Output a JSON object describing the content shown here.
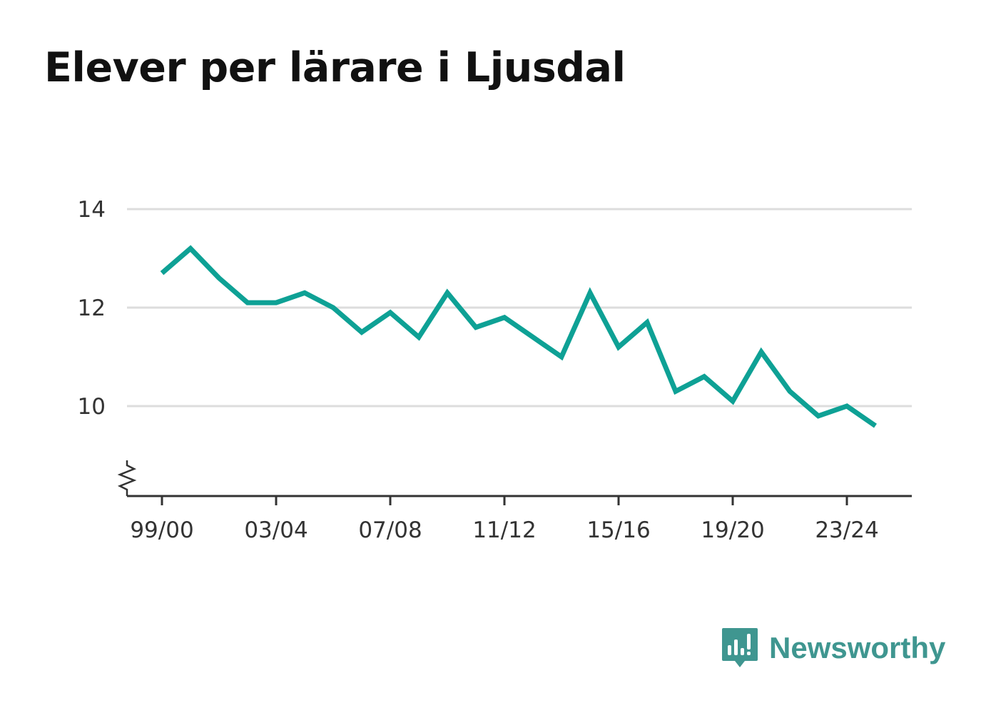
{
  "title": "Elever per lärare i Ljusdal",
  "brand": {
    "name": "Newsworthy",
    "icon": "newsworthy-logo-icon",
    "color": "#3f9690"
  },
  "colors": {
    "line": "#0ea195",
    "grid": "#dddddd",
    "axis": "#333333"
  },
  "chart_data": {
    "type": "line",
    "title": "Elever per lärare i Ljusdal",
    "xlabel": "",
    "ylabel": "",
    "x": [
      "99/00",
      "00/01",
      "01/02",
      "02/03",
      "03/04",
      "04/05",
      "05/06",
      "06/07",
      "07/08",
      "08/09",
      "09/10",
      "10/11",
      "11/12",
      "12/13",
      "13/14",
      "14/15",
      "15/16",
      "16/17",
      "17/18",
      "18/19",
      "19/20",
      "20/21",
      "21/22",
      "22/23",
      "23/24",
      "24/25"
    ],
    "x_tick_labels": [
      "99/00",
      "03/04",
      "07/08",
      "11/12",
      "15/16",
      "19/20",
      "23/24"
    ],
    "y_ticks": [
      10,
      12,
      14
    ],
    "ylim": [
      8.2,
      14
    ],
    "y_axis_break": true,
    "grid": true,
    "series": [
      {
        "values": [
          12.7,
          13.2,
          12.6,
          12.1,
          12.1,
          12.3,
          12.0,
          11.5,
          11.9,
          11.4,
          12.3,
          11.6,
          11.8,
          11.4,
          11.0,
          12.3,
          11.2,
          11.7,
          10.3,
          10.6,
          10.1,
          11.1,
          10.3,
          9.8,
          10.0,
          9.6
        ]
      }
    ]
  }
}
